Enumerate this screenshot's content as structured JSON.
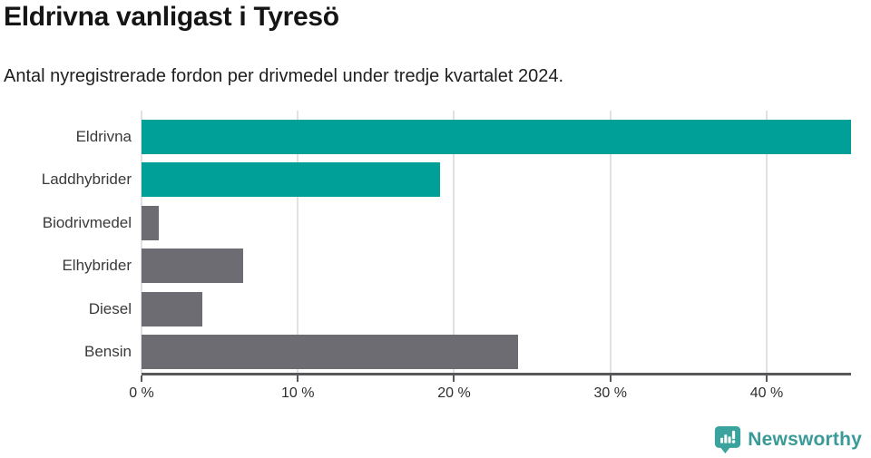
{
  "chart_data": {
    "type": "bar",
    "orientation": "horizontal",
    "title": "Eldrivna vanligast i Tyresö",
    "subtitle": "Antal nyregistrerade fordon per drivmedel under tredje kvartalet 2024.",
    "categories": [
      "Eldrivna",
      "Laddhybrider",
      "Biodrivmedel",
      "Elhybrider",
      "Diesel",
      "Bensin"
    ],
    "values": [
      45.4,
      19.1,
      1.1,
      6.5,
      3.9,
      24.1
    ],
    "unit": "%",
    "bar_colors": [
      "#00a099",
      "#00a099",
      "#6c6c72",
      "#6c6c72",
      "#6c6c72",
      "#6c6c72"
    ],
    "xlim": [
      0,
      45.4
    ],
    "x_ticks": [
      0,
      10,
      20,
      30,
      40
    ],
    "x_tick_labels": [
      "0 %",
      "10 %",
      "20 %",
      "30 %",
      "40 %"
    ],
    "grid": "vertical-only",
    "legend": "none",
    "xlabel": "",
    "ylabel": ""
  },
  "footer": {
    "brand": "Newsworthy",
    "logo_icon": "newsworthy-chart-bubble-icon"
  },
  "colors": {
    "accent_teal": "#00a099",
    "neutral_gray": "#6c6c72",
    "grid_line": "#e1e1e4",
    "axis_line": "#58585a",
    "brand_teal": "#399a98",
    "logo_teal": "#3ba39e",
    "title_text": "#151515",
    "label_text": "#3a3a3a"
  }
}
